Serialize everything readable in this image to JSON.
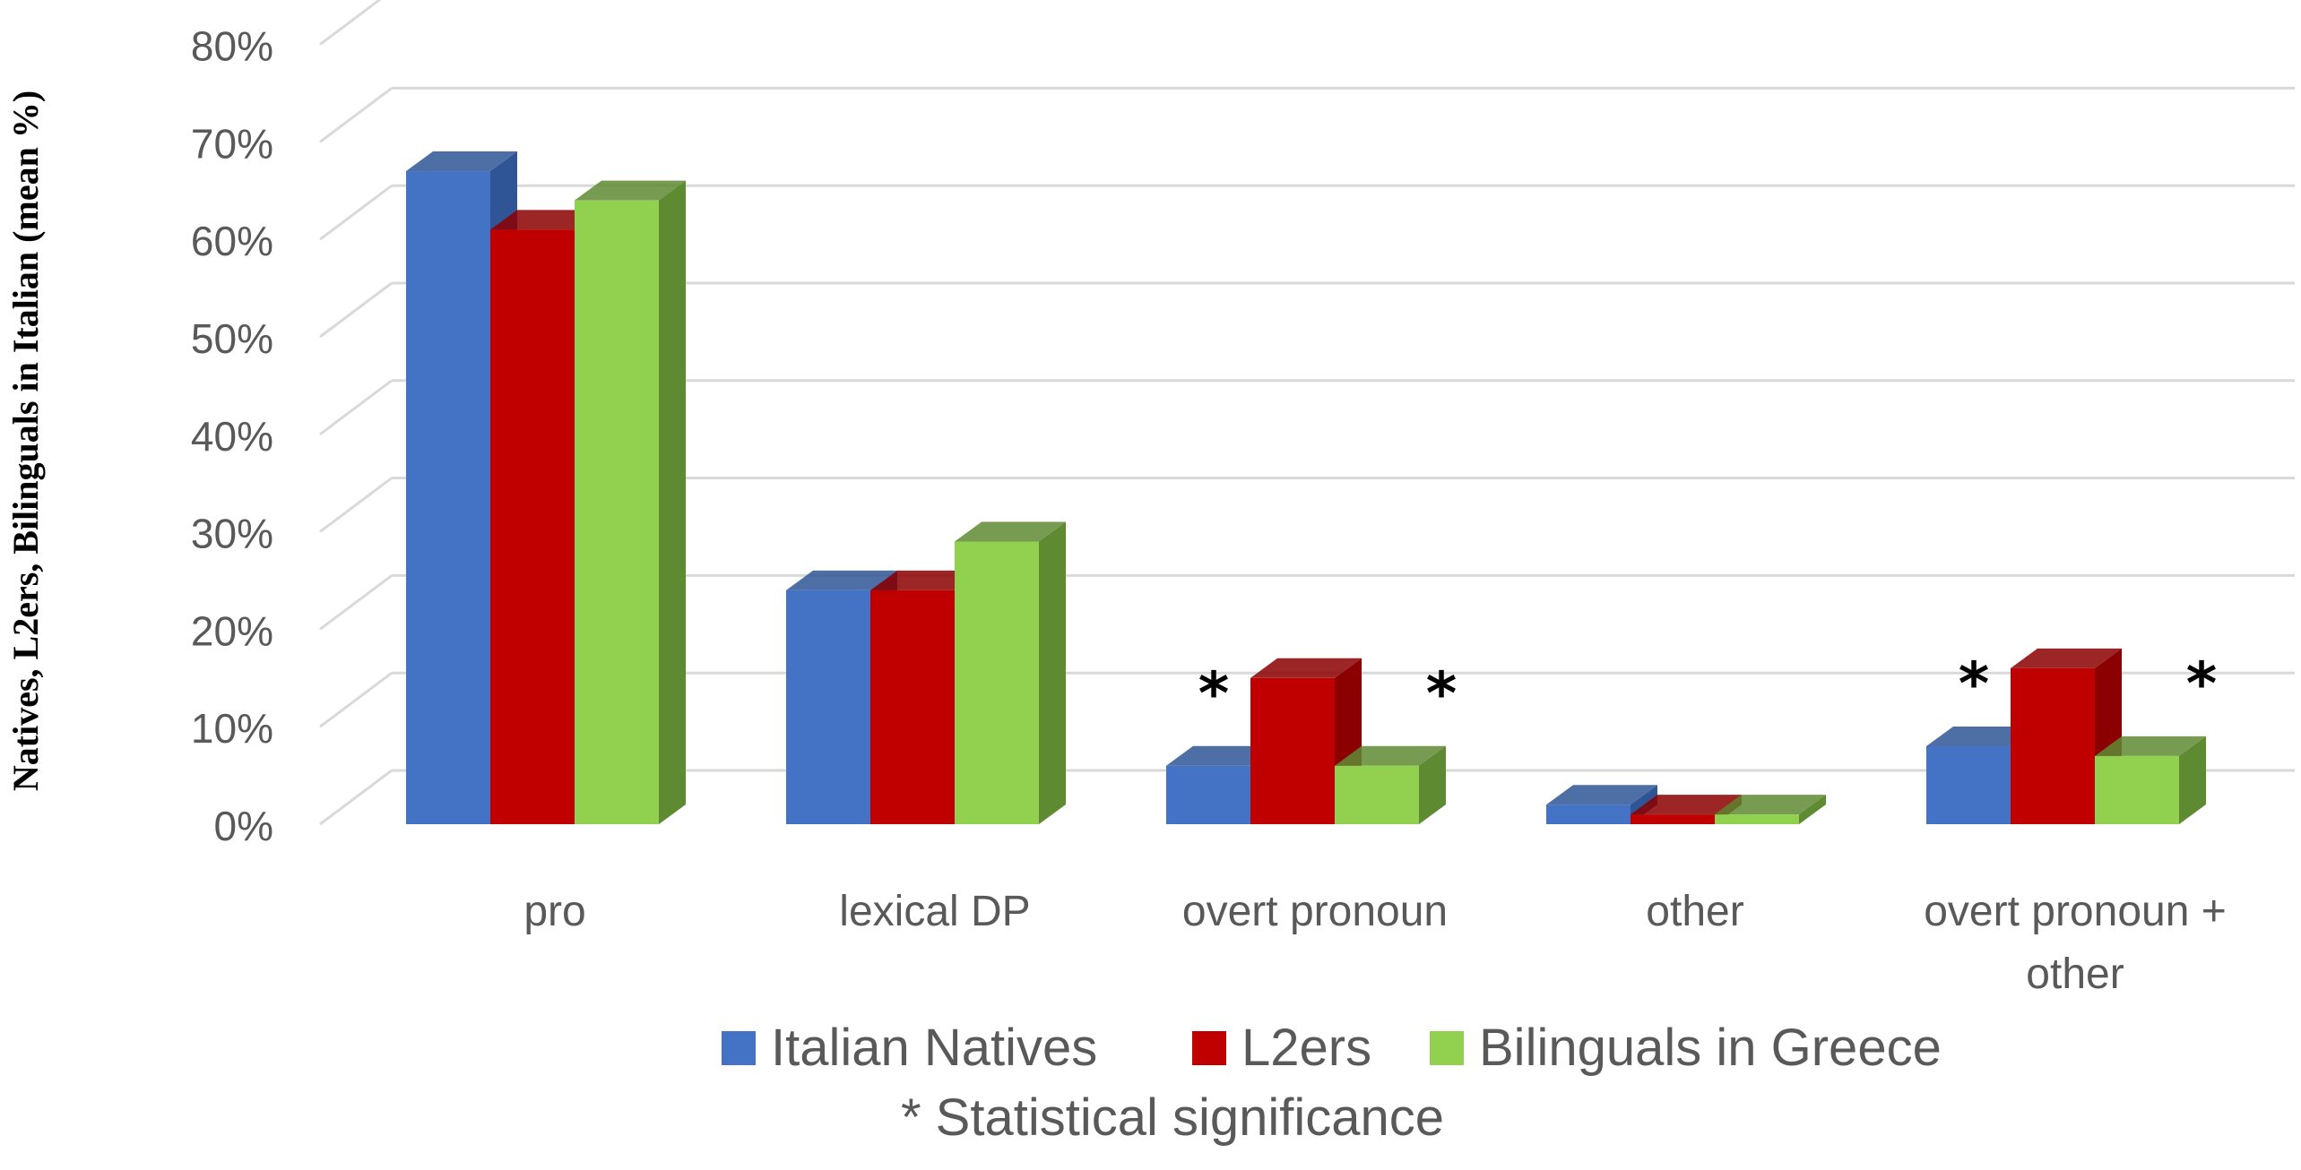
{
  "chart_data": {
    "type": "bar",
    "title": "",
    "xlabel": "",
    "ylabel": "Natives, L2ers, Bilinguals in Italian (mean %)",
    "ylim": [
      0,
      80
    ],
    "yticks": [
      "0%",
      "10%",
      "20%",
      "30%",
      "40%",
      "50%",
      "60%",
      "70%",
      "80%"
    ],
    "categories": [
      "pro",
      "lexical DP",
      "overt pronoun",
      "other",
      "overt pronoun + other"
    ],
    "category_lines": [
      [
        "pro"
      ],
      [
        "lexical DP"
      ],
      [
        "overt pronoun"
      ],
      [
        "other"
      ],
      [
        "overt pronoun +",
        "other"
      ]
    ],
    "series": [
      {
        "name": "Italian Natives",
        "color": "#4472C4",
        "side": "#2F5597",
        "values": [
          67,
          24,
          6,
          2,
          8
        ]
      },
      {
        "name": "L2ers",
        "color": "#C00000",
        "side": "#8B0000",
        "values": [
          61,
          24,
          15,
          1,
          16
        ]
      },
      {
        "name": "Bilinguals in Greece",
        "color": "#92D050",
        "side": "#5E8A32",
        "values": [
          64,
          29,
          6,
          1,
          7
        ]
      }
    ],
    "significance_marks": [
      {
        "category": "overt pronoun",
        "series": "Italian Natives",
        "symbol": "*"
      },
      {
        "category": "overt pronoun",
        "series": "Bilinguals in Greece",
        "symbol": "*"
      },
      {
        "category": "overt pronoun + other",
        "series": "Italian Natives",
        "symbol": "*"
      },
      {
        "category": "overt pronoun + other",
        "series": "Bilinguals in Greece",
        "symbol": "*"
      }
    ],
    "legend_position": "bottom",
    "note": "* Statistical significance",
    "grid": true
  }
}
